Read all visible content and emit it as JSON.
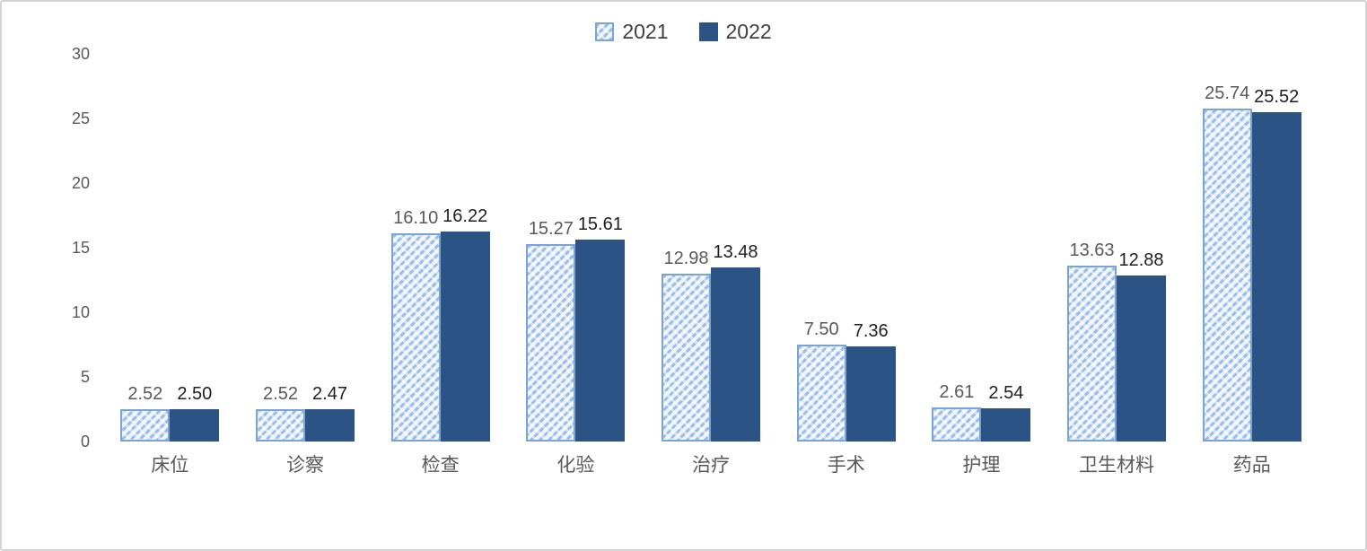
{
  "chart_data": {
    "type": "bar",
    "title": "",
    "xlabel": "",
    "ylabel": "",
    "categories": [
      "床位",
      "诊察",
      "检查",
      "化验",
      "治疗",
      "手术",
      "护理",
      "卫生材料",
      "药品"
    ],
    "series": [
      {
        "name": "2021",
        "values": [
          2.52,
          2.52,
          16.1,
          15.27,
          12.98,
          7.5,
          2.61,
          13.63,
          25.74
        ]
      },
      {
        "name": "2022",
        "values": [
          2.5,
          2.47,
          16.22,
          15.61,
          13.48,
          7.36,
          2.54,
          12.88,
          25.52
        ]
      }
    ],
    "ylim": [
      0,
      30
    ],
    "yticks": [
      0,
      5,
      10,
      15,
      20,
      25,
      30
    ],
    "value_label_precision": 2,
    "grid": false,
    "legend_position": "top-center",
    "colors": {
      "solid_fill": "#2b5384",
      "hatch_stripe": "#9dbde8",
      "hatch_bg": "#edf3fb",
      "hatch_border": "#7aa3d8",
      "label_series_2021": "#595959",
      "label_series_2022": "#1f1f1f",
      "axis_text": "#595959",
      "legend_text": "#404040",
      "card_border": "#d4d4d4"
    }
  }
}
